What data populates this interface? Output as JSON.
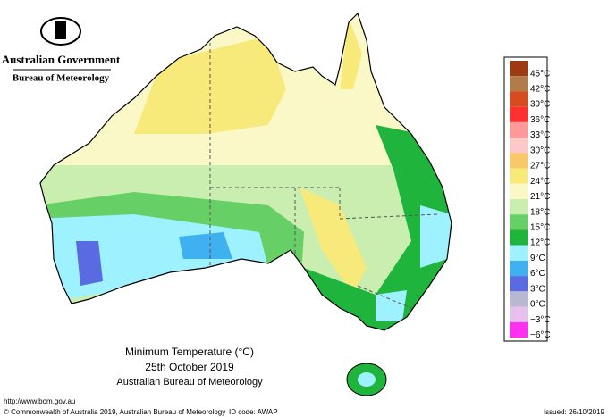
{
  "header": {
    "government": "Australian Government",
    "bureau": "Bureau of Meteorology"
  },
  "map": {
    "title": "Minimum Temperature (°C)",
    "date": "25th October 2019",
    "source": "Australian Bureau of Meteorology"
  },
  "legend": [
    {
      "label": "45°C",
      "color": "#9c3b12"
    },
    {
      "label": "42°C",
      "color": "#b07d4a"
    },
    {
      "label": "39°C",
      "color": "#d64b22"
    },
    {
      "label": "36°C",
      "color": "#ff3030"
    },
    {
      "label": "33°C",
      "color": "#ff9a9a"
    },
    {
      "label": "30°C",
      "color": "#ffc8c8"
    },
    {
      "label": "27°C",
      "color": "#f9c869"
    },
    {
      "label": "24°C",
      "color": "#f8ea7a"
    },
    {
      "label": "21°C",
      "color": "#fbf8c8"
    },
    {
      "label": "18°C",
      "color": "#c9eeb0"
    },
    {
      "label": "15°C",
      "color": "#66d066"
    },
    {
      "label": "12°C",
      "color": "#1fb53d"
    },
    {
      "label": "9°C",
      "color": "#9ef2ff"
    },
    {
      "label": "6°C",
      "color": "#3fb0f0"
    },
    {
      "label": "3°C",
      "color": "#5a6ae0"
    },
    {
      "label": "0°C",
      "color": "#b8b8d0"
    },
    {
      "label": "−3°C",
      "color": "#e8c0f0"
    },
    {
      "label": "−6°C",
      "color": "#ff30f0"
    }
  ],
  "footer": {
    "url": "http://www.bom.gov.au",
    "copyright": "© Commonwealth of Australia 2019, Australian Bureau of Meteorology",
    "id_code": "ID code: AWAP",
    "issued": "Issued: 26/10/2019"
  }
}
